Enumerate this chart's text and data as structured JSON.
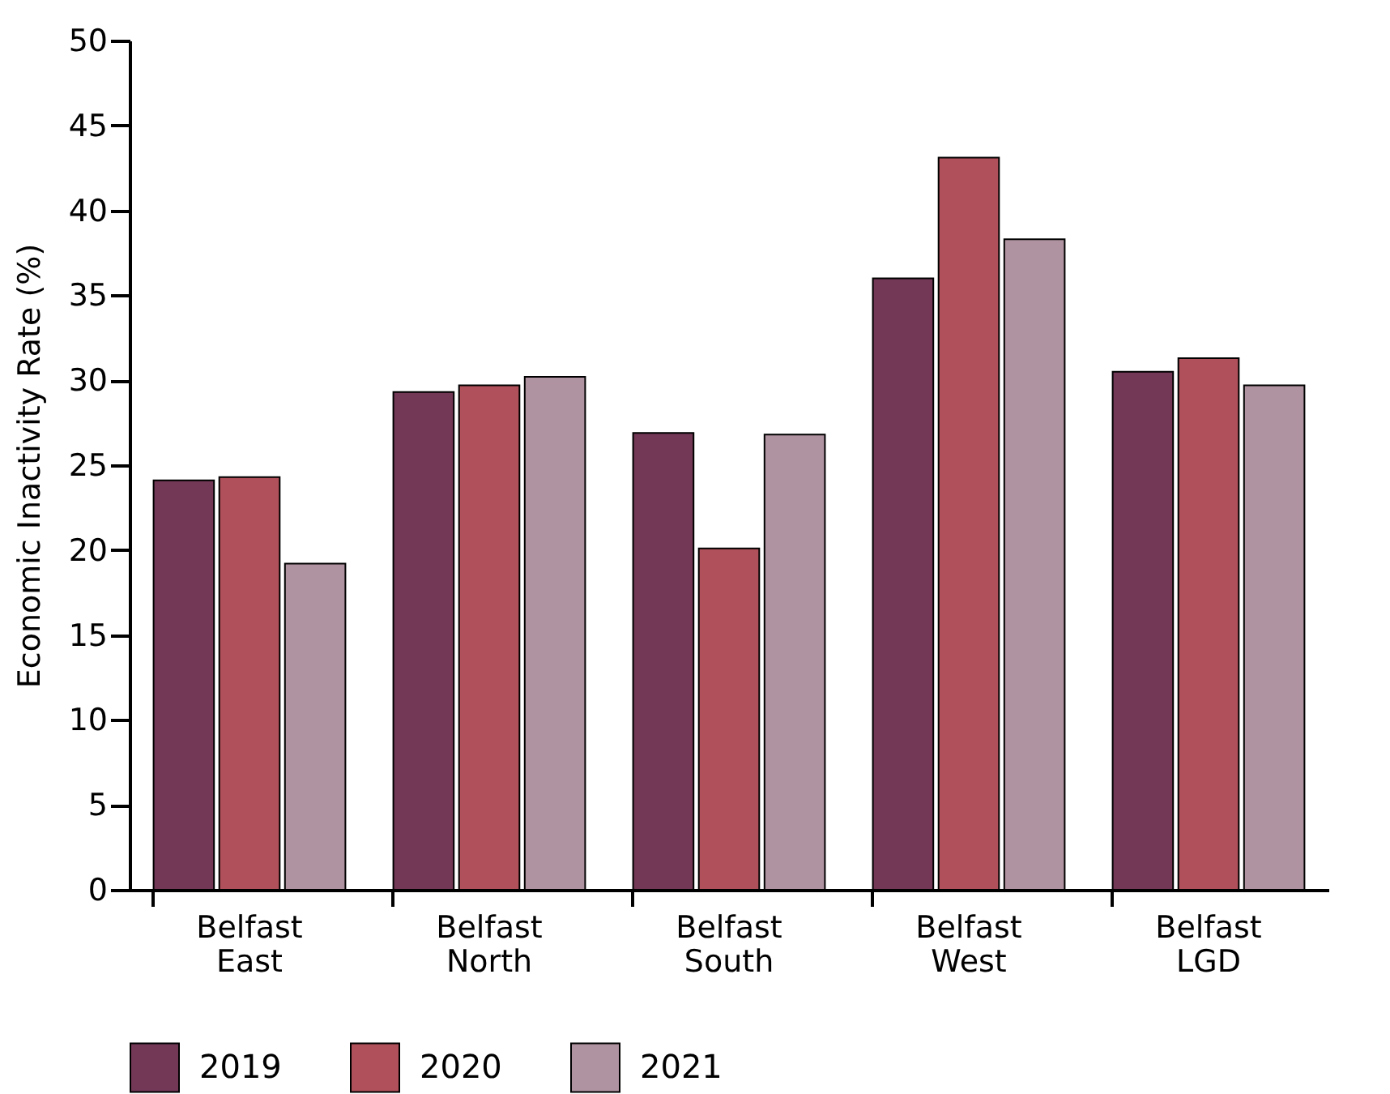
{
  "chart_data": {
    "type": "bar",
    "ylabel": "Economic Inactivity Rate (%)",
    "categories": [
      "Belfast East",
      "Belfast North",
      "Belfast South",
      "Belfast West",
      "Belfast LGD"
    ],
    "series": [
      {
        "name": "2019",
        "color": "#723856",
        "values": [
          24.1,
          29.3,
          26.9,
          36.0,
          30.5
        ]
      },
      {
        "name": "2020",
        "color": "#b0505a",
        "values": [
          24.3,
          29.7,
          20.1,
          43.1,
          31.3
        ]
      },
      {
        "name": "2021",
        "color": "#b093a0",
        "values": [
          19.2,
          30.2,
          26.8,
          38.3,
          29.7
        ]
      }
    ],
    "ylim": [
      0,
      50
    ],
    "yticks": [
      0,
      5,
      10,
      15,
      20,
      25,
      30,
      35,
      40,
      45,
      50
    ],
    "grid": false,
    "legend": "bottom"
  }
}
